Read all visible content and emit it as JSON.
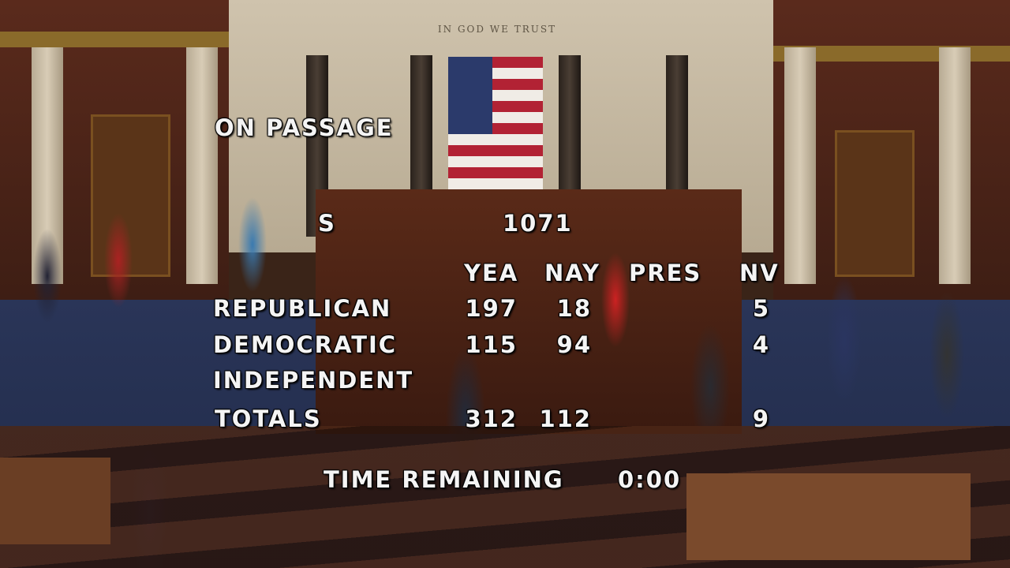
{
  "scene": {
    "wall_motto": "IN GOD WE TRUST"
  },
  "vote": {
    "title": "ON PASSAGE",
    "bill_prefix": "S",
    "bill_number": "1071",
    "columns": [
      "YEA",
      "NAY",
      "PRES",
      "NV"
    ],
    "rows": [
      {
        "party": "REPUBLICAN",
        "yea": "197",
        "nay": "18",
        "pres": "",
        "nv": "5"
      },
      {
        "party": "DEMOCRATIC",
        "yea": "115",
        "nay": "94",
        "pres": "",
        "nv": "4"
      },
      {
        "party": "INDEPENDENT",
        "yea": "",
        "nay": "",
        "pres": "",
        "nv": ""
      },
      {
        "party": "TOTALS",
        "yea": "312",
        "nay": "112",
        "pres": "",
        "nv": "9"
      }
    ],
    "time_label": "TIME REMAINING",
    "time_value": "0:00"
  }
}
